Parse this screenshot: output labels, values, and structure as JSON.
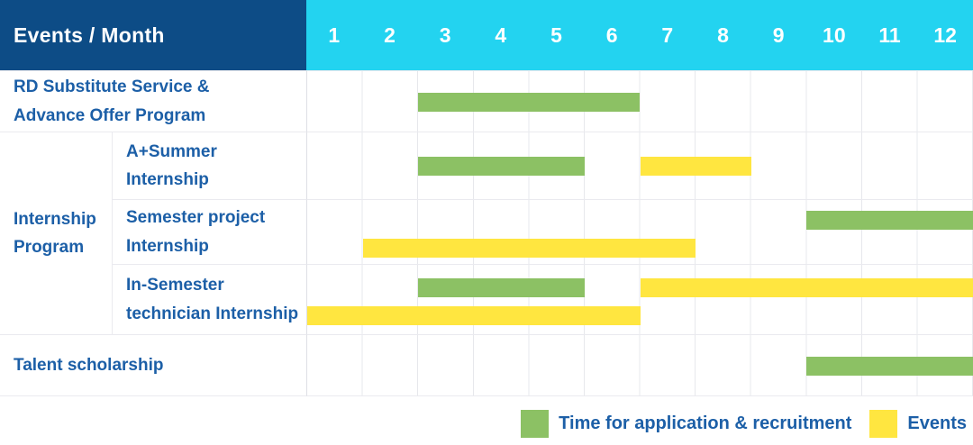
{
  "table": {
    "title": "Events / Month",
    "months": [
      "1",
      "2",
      "3",
      "4",
      "5",
      "6",
      "7",
      "8",
      "9",
      "10",
      "11",
      "12"
    ]
  },
  "group": {
    "label": "Internship\nProgram"
  },
  "rows": [
    {
      "label": "RD Substitute Service &\nAdvance Offer Program",
      "bars": [
        {
          "type": "recruitment",
          "start": 3,
          "end": 6,
          "band": "middle"
        }
      ]
    },
    {
      "label": "A+Summer\nInternship",
      "bars": [
        {
          "type": "recruitment",
          "start": 3,
          "end": 5,
          "band": "middle"
        },
        {
          "type": "events",
          "start": 7,
          "end": 8,
          "band": "middle"
        }
      ]
    },
    {
      "label": "Semester project\nInternship",
      "bars": [
        {
          "type": "recruitment",
          "start": 10,
          "end": 12,
          "band": "top"
        },
        {
          "type": "events",
          "start": 2,
          "end": 7,
          "band": "bottom"
        }
      ]
    },
    {
      "label": "In-Semester\ntechnician Internship",
      "bars": [
        {
          "type": "recruitment",
          "start": 3,
          "end": 5,
          "band": "top"
        },
        {
          "type": "events",
          "start": 7,
          "end": 12,
          "band": "top"
        },
        {
          "type": "events",
          "start": 1,
          "end": 6,
          "band": "bottom"
        }
      ]
    },
    {
      "label": "Talent scholarship",
      "bars": [
        {
          "type": "recruitment",
          "start": 10,
          "end": 12,
          "band": "middle"
        }
      ]
    }
  ],
  "legend": [
    {
      "type": "recruitment",
      "label": "Time for application & recruitment"
    },
    {
      "type": "events",
      "label": "Events"
    }
  ],
  "colors": {
    "recruitment": "#8CC164",
    "events": "#FFE640",
    "header_bg": "#0D4C86",
    "months_bg": "#23D3F0",
    "label_text": "#1C5FA7",
    "grid_line": "#E7E8EC"
  },
  "chart_data": {
    "type": "table",
    "title": "Events / Month",
    "x": {
      "label": "Month",
      "ticks": [
        "1",
        "2",
        "3",
        "4",
        "5",
        "6",
        "7",
        "8",
        "9",
        "10",
        "11",
        "12"
      ],
      "range": [
        1,
        12
      ]
    },
    "legend_entries": [
      "Time for application & recruitment",
      "Events"
    ],
    "rows": [
      {
        "event": "RD Substitute Service & Advance Offer Program",
        "group": null,
        "application_recruitment_month_ranges": [
          [
            3,
            6
          ]
        ],
        "events_month_ranges": []
      },
      {
        "event": "A+Summer Internship",
        "group": "Internship Program",
        "application_recruitment_month_ranges": [
          [
            3,
            5
          ]
        ],
        "events_month_ranges": [
          [
            7,
            8
          ]
        ]
      },
      {
        "event": "Semester project Internship",
        "group": "Internship Program",
        "application_recruitment_month_ranges": [
          [
            10,
            12
          ]
        ],
        "events_month_ranges": [
          [
            2,
            7
          ]
        ]
      },
      {
        "event": "In-Semester technician Internship",
        "group": "Internship Program",
        "application_recruitment_month_ranges": [
          [
            3,
            5
          ]
        ],
        "events_month_ranges": [
          [
            1,
            6
          ],
          [
            7,
            12
          ]
        ]
      },
      {
        "event": "Talent scholarship",
        "group": null,
        "application_recruitment_month_ranges": [
          [
            10,
            12
          ]
        ],
        "events_month_ranges": []
      }
    ]
  }
}
